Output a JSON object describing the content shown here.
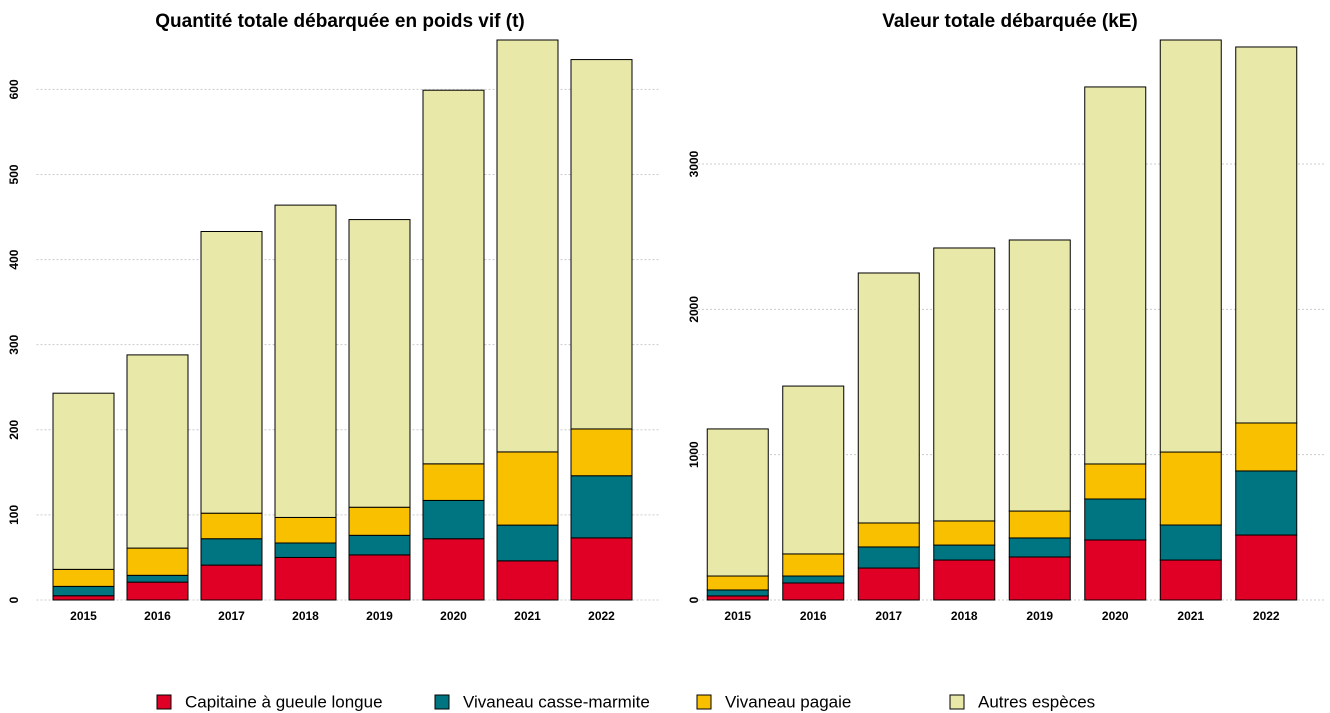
{
  "chart_data": [
    {
      "type": "bar",
      "stacked": true,
      "title": "Quantité totale débarquée en poids vif (t)",
      "categories": [
        "2015",
        "2016",
        "2017",
        "2018",
        "2019",
        "2020",
        "2021",
        "2022"
      ],
      "series": [
        {
          "name": "Capitaine à gueule longue",
          "color": "#e00025",
          "values": [
            5,
            21,
            41,
            50,
            53,
            72,
            46,
            73
          ]
        },
        {
          "name": "Vivaneau casse-marmite",
          "color": "#007582",
          "values": [
            11,
            8,
            31,
            17,
            23,
            45,
            42,
            73
          ]
        },
        {
          "name": "Vivaneau pagaie",
          "color": "#f9c000",
          "values": [
            20,
            32,
            30,
            30,
            33,
            43,
            86,
            55
          ]
        },
        {
          "name": "Autres espèces",
          "color": "#e8e8a8",
          "values": [
            207,
            227,
            331,
            367,
            338,
            439,
            484,
            434
          ]
        }
      ],
      "ylim": [
        0,
        658
      ],
      "yticks": [
        0,
        100,
        200,
        300,
        400,
        500,
        600
      ],
      "grid": true
    },
    {
      "type": "bar",
      "stacked": true,
      "title": "Valeur totale débarquée (kE)",
      "categories": [
        "2015",
        "2016",
        "2017",
        "2018",
        "2019",
        "2020",
        "2021",
        "2022"
      ],
      "series": [
        {
          "name": "Capitaine à gueule longue",
          "color": "#e00025",
          "values": [
            28,
            117,
            220,
            275,
            296,
            413,
            275,
            447
          ]
        },
        {
          "name": "Vivaneau casse-marmite",
          "color": "#007582",
          "values": [
            41,
            48,
            145,
            103,
            131,
            282,
            241,
            441
          ]
        },
        {
          "name": "Vivaneau pagaie",
          "color": "#f9c000",
          "values": [
            96,
            152,
            165,
            166,
            185,
            241,
            502,
            330
          ]
        },
        {
          "name": "Autres espèces",
          "color": "#e8e8a8",
          "values": [
            1012,
            1155,
            1720,
            1878,
            1865,
            2594,
            2835,
            2587
          ]
        }
      ],
      "ylim": [
        0,
        3853
      ],
      "yticks": [
        0,
        1000,
        2000,
        3000
      ],
      "grid": true
    }
  ]
}
